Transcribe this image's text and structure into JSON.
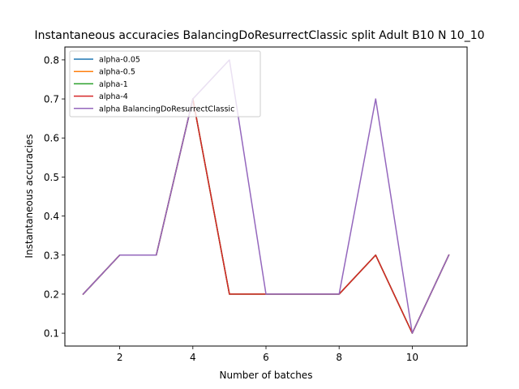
{
  "chart_data": {
    "type": "line",
    "title": "Instantaneous accuracies BalancingDoResurrectClassic split Adult B10 N 10_10",
    "xlabel": "Number of batches",
    "ylabel": "Instantaneous accuracies",
    "xlim": [
      0.5,
      11.5
    ],
    "ylim": [
      0.067,
      0.833
    ],
    "x_ticks": [
      2,
      4,
      6,
      8,
      10
    ],
    "y_ticks": [
      0.1,
      0.2,
      0.3,
      0.4,
      0.5,
      0.6,
      0.7,
      0.8
    ],
    "grid": false,
    "legend_position": "top-left",
    "x": [
      1,
      2,
      3,
      4,
      5,
      6,
      7,
      8,
      9,
      10,
      11
    ],
    "series": [
      {
        "name": "alpha-0.05",
        "color": "#1f77b4",
        "values": [
          0.2,
          0.3,
          0.3,
          0.7,
          0.2,
          0.2,
          0.2,
          0.2,
          0.3,
          0.1,
          0.3
        ]
      },
      {
        "name": "alpha-0.5",
        "color": "#ff7f0e",
        "values": [
          0.2,
          0.3,
          0.3,
          0.7,
          0.2,
          0.2,
          0.2,
          0.2,
          0.3,
          0.1,
          0.3
        ]
      },
      {
        "name": "alpha-1",
        "color": "#2ca02c",
        "values": [
          0.2,
          0.3,
          0.3,
          0.7,
          0.2,
          0.2,
          0.2,
          0.2,
          0.3,
          0.1,
          0.3
        ]
      },
      {
        "name": "alpha-4",
        "color": "#d62728",
        "values": [
          0.2,
          0.3,
          0.3,
          0.7,
          0.2,
          0.2,
          0.2,
          0.2,
          0.3,
          0.1,
          0.3
        ]
      },
      {
        "name": "alpha BalancingDoResurrectClassic",
        "color": "#9467bd",
        "values": [
          0.2,
          0.3,
          0.3,
          0.7,
          0.8,
          0.2,
          0.2,
          0.2,
          0.7,
          0.1,
          0.3
        ]
      }
    ]
  }
}
